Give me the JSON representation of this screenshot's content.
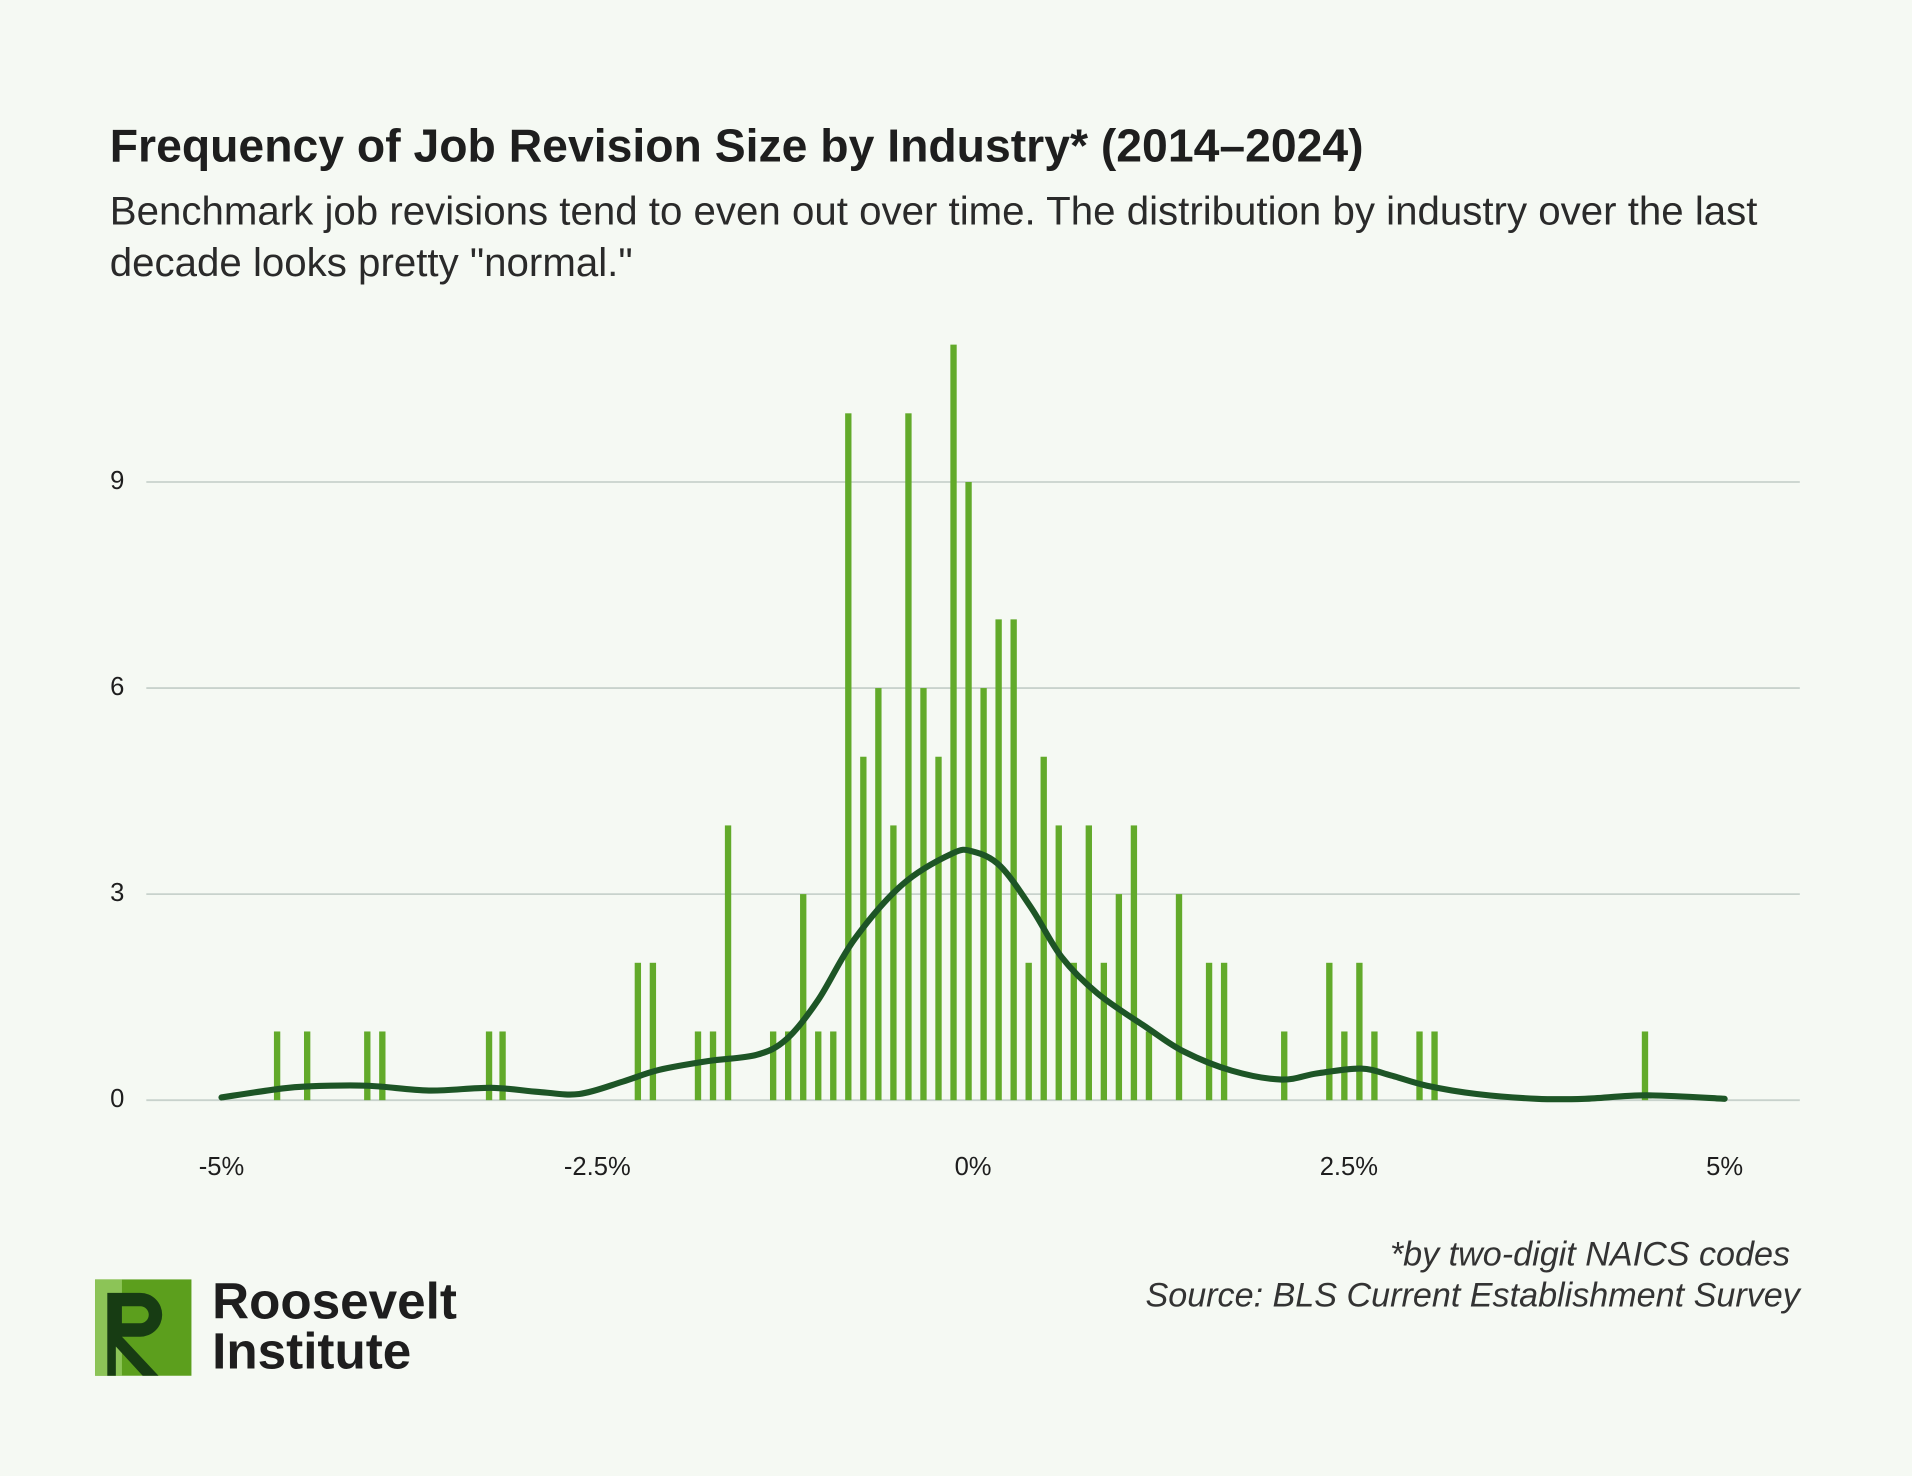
{
  "chart_data": {
    "type": "bar",
    "title": "Frequency of Job Revision Size by Industry* (2014–2024)",
    "subtitle": "Benchmark job revisions tend to even out over time. The distribution by industry over the last decade looks pretty \"normal.\"",
    "xlim": [
      -5.5,
      5.5
    ],
    "xticks": [
      {
        "value": -5,
        "label": "-5%"
      },
      {
        "value": -2.5,
        "label": "-2.5%"
      },
      {
        "value": 0,
        "label": "0%"
      },
      {
        "value": 2.5,
        "label": "2.5%"
      },
      {
        "value": 5,
        "label": "5%"
      }
    ],
    "ylim": [
      0,
      11
    ],
    "yticks": [
      0,
      3,
      6,
      9
    ],
    "grid": true,
    "series": [
      {
        "type": "bar",
        "color": "#62aa2a",
        "x": [
          -4.63,
          -4.43,
          -4.03,
          -3.93,
          -3.22,
          -3.13,
          -2.23,
          -2.13,
          -1.83,
          -1.73,
          -1.63,
          -1.33,
          -1.23,
          -1.13,
          -1.03,
          -0.93,
          -0.83,
          -0.73,
          -0.63,
          -0.53,
          -0.43,
          -0.33,
          -0.23,
          -0.13,
          -0.03,
          0.07,
          0.17,
          0.27,
          0.37,
          0.47,
          0.57,
          0.67,
          0.77,
          0.87,
          0.97,
          1.07,
          1.17,
          1.37,
          1.57,
          1.67,
          2.07,
          2.37,
          2.47,
          2.57,
          2.67,
          2.97,
          3.07,
          4.47
        ],
        "values": [
          1,
          1,
          1,
          1,
          1,
          1,
          2,
          2,
          1,
          1,
          4,
          1,
          1,
          3,
          1,
          1,
          10,
          5,
          6,
          4,
          10,
          6,
          5,
          11,
          9,
          6,
          7,
          7,
          2,
          5,
          4,
          2,
          4,
          2,
          3,
          4,
          1,
          3,
          2,
          2,
          1,
          2,
          1,
          2,
          1,
          1,
          1,
          1
        ]
      },
      {
        "type": "line",
        "color": "#1d5526",
        "x": [
          -5.0,
          -4.63,
          -4.43,
          -4.03,
          -3.62,
          -3.21,
          -2.89,
          -2.62,
          -2.33,
          -2.09,
          -1.76,
          -1.44,
          -1.24,
          -1.03,
          -0.79,
          -0.47,
          -0.14,
          0.0,
          0.18,
          0.39,
          0.59,
          0.83,
          1.16,
          1.4,
          1.72,
          2.05,
          2.29,
          2.58,
          2.78,
          3.02,
          3.35,
          3.75,
          4.07,
          4.48,
          5.0
        ],
        "values": [
          0.04,
          0.16,
          0.2,
          0.21,
          0.14,
          0.18,
          0.12,
          0.09,
          0.27,
          0.44,
          0.57,
          0.66,
          0.89,
          1.46,
          2.34,
          3.14,
          3.59,
          3.62,
          3.41,
          2.79,
          2.08,
          1.55,
          1.05,
          0.71,
          0.43,
          0.3,
          0.39,
          0.46,
          0.36,
          0.21,
          0.09,
          0.02,
          0.02,
          0.07,
          0.02
        ]
      }
    ],
    "notes": [
      "*by two-digit NAICS codes",
      "Source: BLS Current Establishment Survey"
    ]
  },
  "logo": [
    "Roosevelt",
    "Institute"
  ]
}
